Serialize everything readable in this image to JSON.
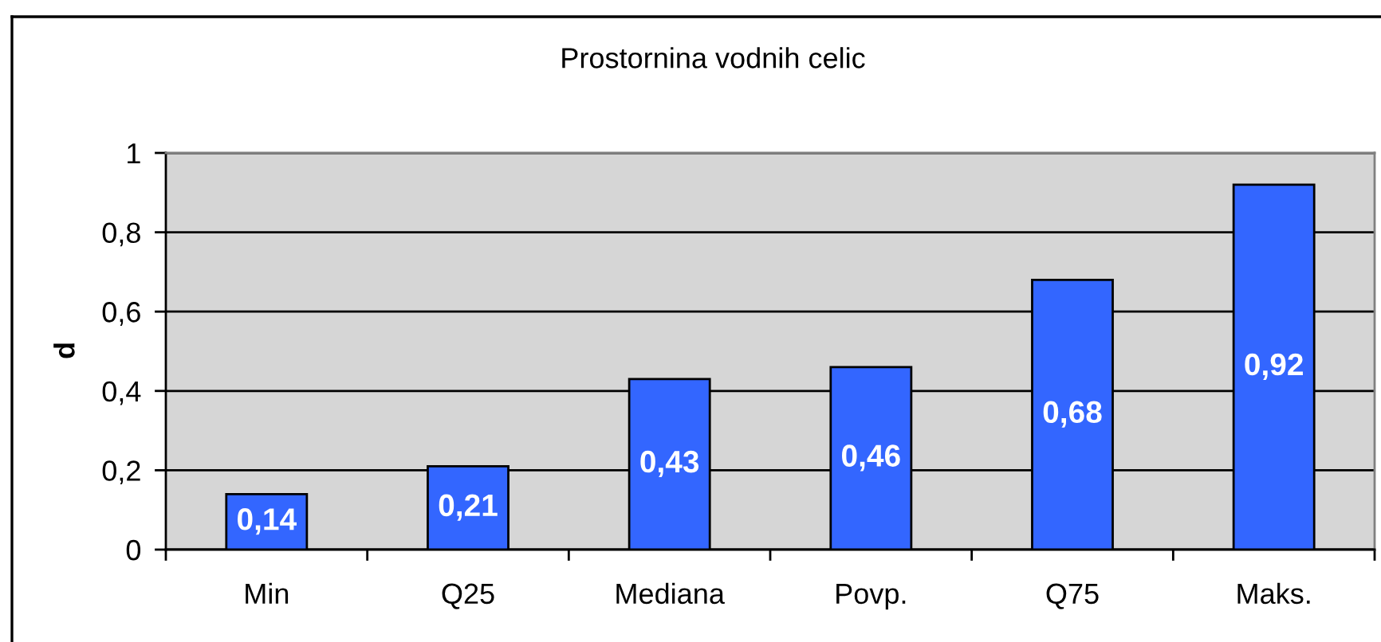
{
  "chart_data": {
    "type": "bar",
    "title": "Prostornina vodnih celic",
    "ylabel": "d",
    "categories": [
      "Min",
      "Q25",
      "Mediana",
      "Povp.",
      "Q75",
      "Maks."
    ],
    "values": [
      0.14,
      0.21,
      0.43,
      0.46,
      0.68,
      0.92
    ],
    "color": "#3366ff",
    "value_labels": [
      "0,14",
      "0,21",
      "0,43",
      "0,46",
      "0,68",
      "0,92"
    ],
    "ylim": [
      0,
      1
    ],
    "yticks": [
      0,
      {
        "value": 0.2,
        "label": "0,2"
      },
      {
        "value": 0.4,
        "label": "0,4"
      },
      {
        "value": 0.6,
        "label": "0,6"
      },
      {
        "value": 0.8,
        "label": "0,8"
      },
      1
    ],
    "grid": "y"
  }
}
